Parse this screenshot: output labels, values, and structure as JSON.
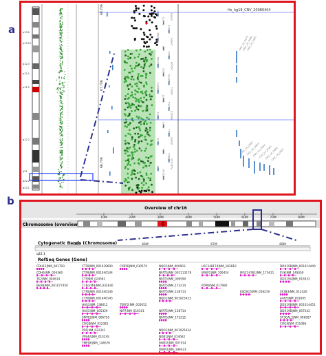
{
  "labels": {
    "panel_a": "a",
    "panel_b": "b"
  },
  "panel_a": {
    "ideogram_bands": [
      "p13.2",
      "p13.12",
      "p12.3",
      "p12.1",
      "p11.2",
      "q12.2",
      "q21",
      "q22.2",
      "q23.1"
    ],
    "ruler_ticks": [
      "68.706",
      "67.706",
      "66.706"
    ],
    "track_title": "Hs_hg18_CNV_20080404",
    "gene_labels_col1": [
      "CTCF",
      "RHOT2",
      "NFATC3",
      "PARD6A",
      "ACD",
      "ENKD1",
      "C16orf48",
      "GFOD2",
      "RANBP10",
      "TSNAXIP1",
      "CENPT",
      "THAP11",
      "NUTF2",
      "EDC4",
      "NRN1L",
      "PSKH1",
      "CTRL",
      "PSMB10",
      "LCAT",
      "SLC12A4"
    ],
    "gene_labels_col2": [
      "DPEP3",
      "DPEP2",
      "DDX28",
      "DUS2L",
      "NFATC3",
      "ESRP2",
      "PLA2G15"
    ],
    "cnv_labels": [
      "CNV_16_0679",
      "CNV_16_0680",
      "CNV_16_0681"
    ],
    "cnv_labels_lower": [
      "CNV_16_0682",
      "CNV_16_0683",
      "CNV_16_0684",
      "CNV_16_0685",
      "CNV_16_0686",
      "CNV_16_0687"
    ]
  },
  "panel_b": {
    "overview_title": "Overview of chr16",
    "overview_ticks": [
      "10M",
      "20M",
      "30M",
      "40M",
      "50M",
      "60M",
      "70M",
      "80M"
    ],
    "chromosome_label": "Chromosome (overview)",
    "cytoband_label": "Cytogenetic Bands (Chromosome)",
    "cytoband_ticks": [
      "65M",
      "66M",
      "67M",
      "68M"
    ],
    "cytoband_name": "q22.1",
    "refseq_label": "RefSeq Genes (Gene)",
    "genes": [
      {
        "t": "CDH11|NM_001793",
        "c": 0,
        "r": 0
      },
      {
        "t": "CDH5|NM_004360",
        "c": 0,
        "r": 1
      },
      {
        "t": "TK2|NM_004614",
        "c": 0,
        "r": 2
      },
      {
        "t": "BEAN|NM_001077450",
        "c": 0,
        "r": 3
      },
      {
        "t": "CTF|NM_024562",
        "c": 1,
        "r": 2
      },
      {
        "t": "CTF8|NM_001039690",
        "c": 1,
        "r": 0
      },
      {
        "t": "CTF8|NM_001040144",
        "c": 1,
        "r": 1
      },
      {
        "t": "C16orf48|NM_032830",
        "c": 1,
        "r": 3
      },
      {
        "t": "CTF8|NM_001040146",
        "c": 1,
        "r": 4
      },
      {
        "t": "CTF8|NM_001040145",
        "c": 1,
        "r": 5
      },
      {
        "t": "HAS3|NM_138612",
        "c": 1,
        "r": 6
      },
      {
        "t": "HAS3|NM_005329",
        "c": 1,
        "r": 7
      },
      {
        "t": "SNTB2|NM_006750",
        "c": 1,
        "r": 8
      },
      {
        "t": "COG8|NM_032382",
        "c": 1,
        "r": 9
      },
      {
        "t": "PDF|NM_022341",
        "c": 1,
        "r": 10
      },
      {
        "t": "VPS4A|NM_013245",
        "c": 1,
        "r": 11
      },
      {
        "t": "TMED6|NM_144676",
        "c": 1,
        "r": 12
      },
      {
        "t": "CYB5B|NM_030579",
        "c": 2,
        "r": 0
      },
      {
        "t": "TERF2|NM_005652",
        "c": 2,
        "r": 6
      },
      {
        "t": "NIP7|NM_016101",
        "c": 2,
        "r": 7
      },
      {
        "t": "NQO1|NM_000903",
        "c": 3,
        "r": 0
      },
      {
        "t": "NFAT5|NM_001113178",
        "c": 3,
        "r": 1
      },
      {
        "t": "NFAT5|NM_006599",
        "c": 3,
        "r": 2
      },
      {
        "t": "NFAT5|NM_173214",
        "c": 3,
        "r": 3
      },
      {
        "t": "NFAT5|NM_138713",
        "c": 3,
        "r": 4
      },
      {
        "t": "NQO1|NM_001025433",
        "c": 3,
        "r": 5
      },
      {
        "t": "NFAT5|NM_138714",
        "c": 3,
        "r": 7
      },
      {
        "t": "NFAT5|NM_173215",
        "c": 3,
        "r": 8
      },
      {
        "t": "NQO1|NM_001025434",
        "c": 3,
        "r": 10
      },
      {
        "t": "NOB1|NM_014062",
        "c": 3,
        "r": 11
      },
      {
        "t": "WWP2|NM_007014",
        "c": 3,
        "r": 12
      },
      {
        "t": "WWP2|NM_199423",
        "c": 3,
        "r": 13
      },
      {
        "t": "LOC348174|NM_182819",
        "c": 4,
        "r": 0
      },
      {
        "t": "WWP2|NM_199424",
        "c": 4,
        "r": 1
      },
      {
        "t": "PDPR|NM_017990",
        "c": 4,
        "r": 3
      },
      {
        "t": "MGC34761|NM_173611",
        "c": 5,
        "r": 1
      },
      {
        "t": "EXOSC6|NM_058219",
        "c": 5,
        "r": 4
      },
      {
        "t": "DDX19B|NM_001014449",
        "c": 6,
        "r": 0
      },
      {
        "t": "FUK|NM_145059",
        "c": 6,
        "r": 1
      },
      {
        "t": "DDX19A|NM_018332",
        "c": 6,
        "r": 2
      },
      {
        "t": "AARS|NM_001605",
        "c": 6,
        "r": 5
      },
      {
        "t": "SF3B3|NM_012426",
        "c": 6,
        "r": 4
      },
      {
        "t": "DDX19B|NM_001014451",
        "c": 6,
        "r": 6
      },
      {
        "t": "DDX19B|NM_007242",
        "c": 6,
        "r": 7
      },
      {
        "t": "ST3GAL2|NM_006927",
        "c": 6,
        "r": 8
      },
      {
        "t": "COG4|NM_015386",
        "c": 6,
        "r": 9
      }
    ]
  }
}
